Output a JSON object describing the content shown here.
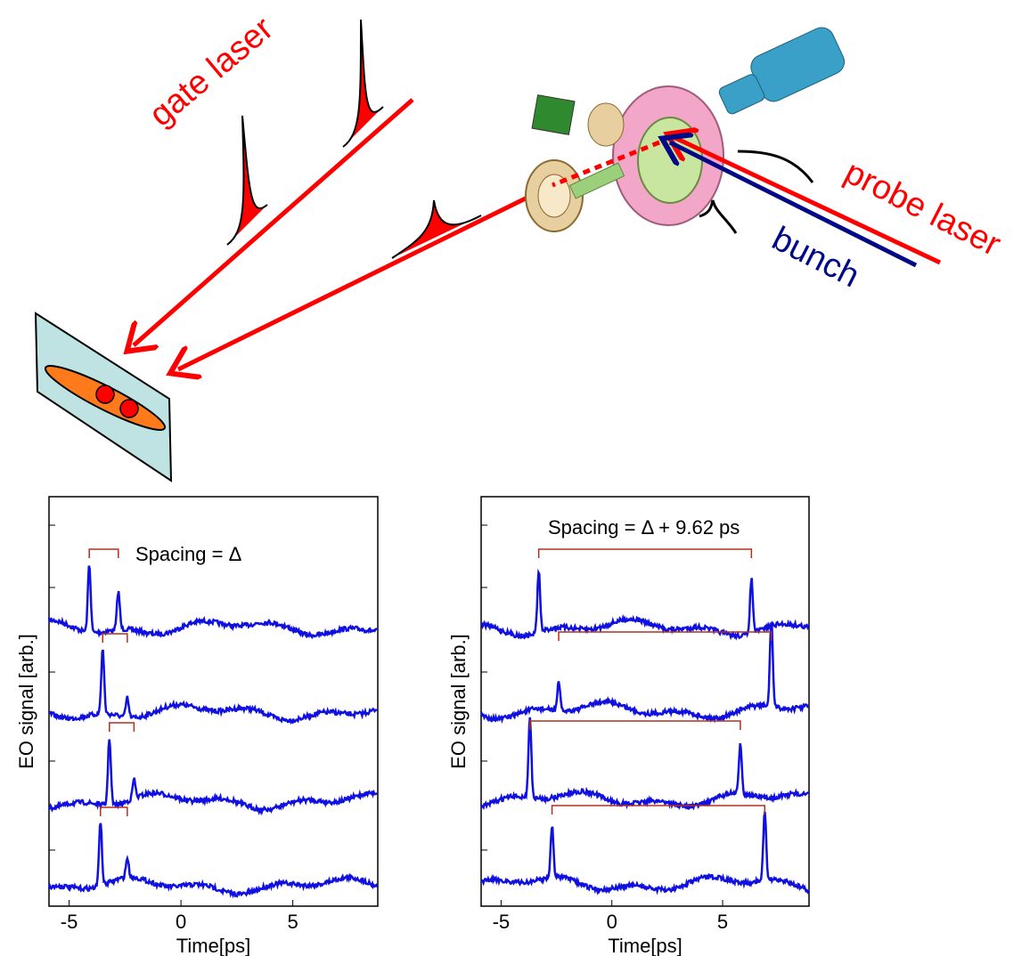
{
  "diagram": {
    "gate_label": "gate laser",
    "probe_label": "probe laser",
    "bunch_label": "bunch"
  },
  "plots": [
    {
      "annotation": "Spacing = Δ",
      "ylabel": "EO signal [arb.]",
      "xlabel": "Time[ps]",
      "xlim": [
        -5.9,
        8.8
      ],
      "xticks": [
        -5,
        0,
        5
      ],
      "traces": [
        {
          "peaks": [
            -4.1,
            -2.8
          ],
          "heights": [
            0.8,
            0.45
          ]
        },
        {
          "peaks": [
            -3.5,
            -2.4
          ],
          "heights": [
            0.77,
            0.23
          ]
        },
        {
          "peaks": [
            -3.2,
            -2.1
          ],
          "heights": [
            0.8,
            0.23
          ]
        },
        {
          "peaks": [
            -3.6,
            -2.4
          ],
          "heights": [
            0.77,
            0.23
          ]
        }
      ]
    },
    {
      "annotation": "Spacing = Δ + 9.62 ps",
      "ylabel": "EO signal [arb.]",
      "xlabel": "Time[ps]",
      "xlim": [
        -5.9,
        8.9
      ],
      "xticks": [
        -5,
        0,
        5
      ],
      "traces": [
        {
          "peaks": [
            -3.3,
            6.3
          ],
          "heights": [
            0.72,
            0.65
          ]
        },
        {
          "peaks": [
            -2.4,
            7.2
          ],
          "heights": [
            0.33,
            1.03
          ]
        },
        {
          "peaks": [
            -3.7,
            5.8
          ],
          "heights": [
            0.95,
            0.6
          ]
        },
        {
          "peaks": [
            -2.7,
            6.9
          ],
          "heights": [
            0.6,
            0.8
          ]
        }
      ]
    }
  ]
}
